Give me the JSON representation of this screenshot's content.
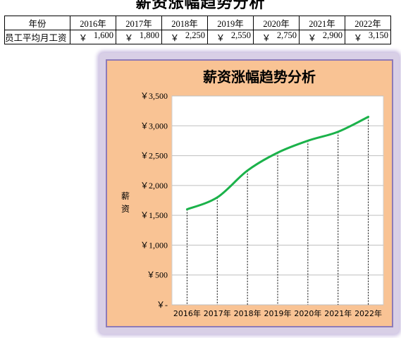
{
  "sheet": {
    "title": "薪资涨幅趋势分析",
    "header_label": "年份",
    "row_label": "员工平均月工资",
    "years": [
      "2016年",
      "2017年",
      "2018年",
      "2019年",
      "2020年",
      "2021年",
      "2022年"
    ],
    "currency_symbol": "￥",
    "salaries": [
      "1,600",
      "1,800",
      "2,250",
      "2,550",
      "2,750",
      "2,900",
      "3,150"
    ]
  },
  "chart_data": {
    "type": "line",
    "title": "薪资涨幅趋势分析",
    "xlabel": "",
    "ylabel": "薪资",
    "categories": [
      "2016年",
      "2017年",
      "2018年",
      "2019年",
      "2020年",
      "2021年",
      "2022年"
    ],
    "series": [
      {
        "values": [
          1600,
          1800,
          2250,
          2550,
          2750,
          2900,
          3150
        ]
      }
    ],
    "ylim": [
      0,
      3500
    ],
    "y_ticks": [
      0,
      500,
      1000,
      1500,
      2000,
      2500,
      3000,
      3500
    ],
    "y_tick_labels": [
      "￥-",
      "￥500",
      "￥1,000",
      "￥1,500",
      "￥2,000",
      "￥2,500",
      "￥3,000",
      "￥3,500"
    ],
    "grid": true,
    "drop_lines": true,
    "smooth": true,
    "legend": "none",
    "colors": {
      "line": "#1bb24a",
      "chart_area": "#f9c394",
      "plot_area": "#ffffff",
      "border": "#8e7bb8",
      "gridline": "#bfbfbf"
    }
  }
}
